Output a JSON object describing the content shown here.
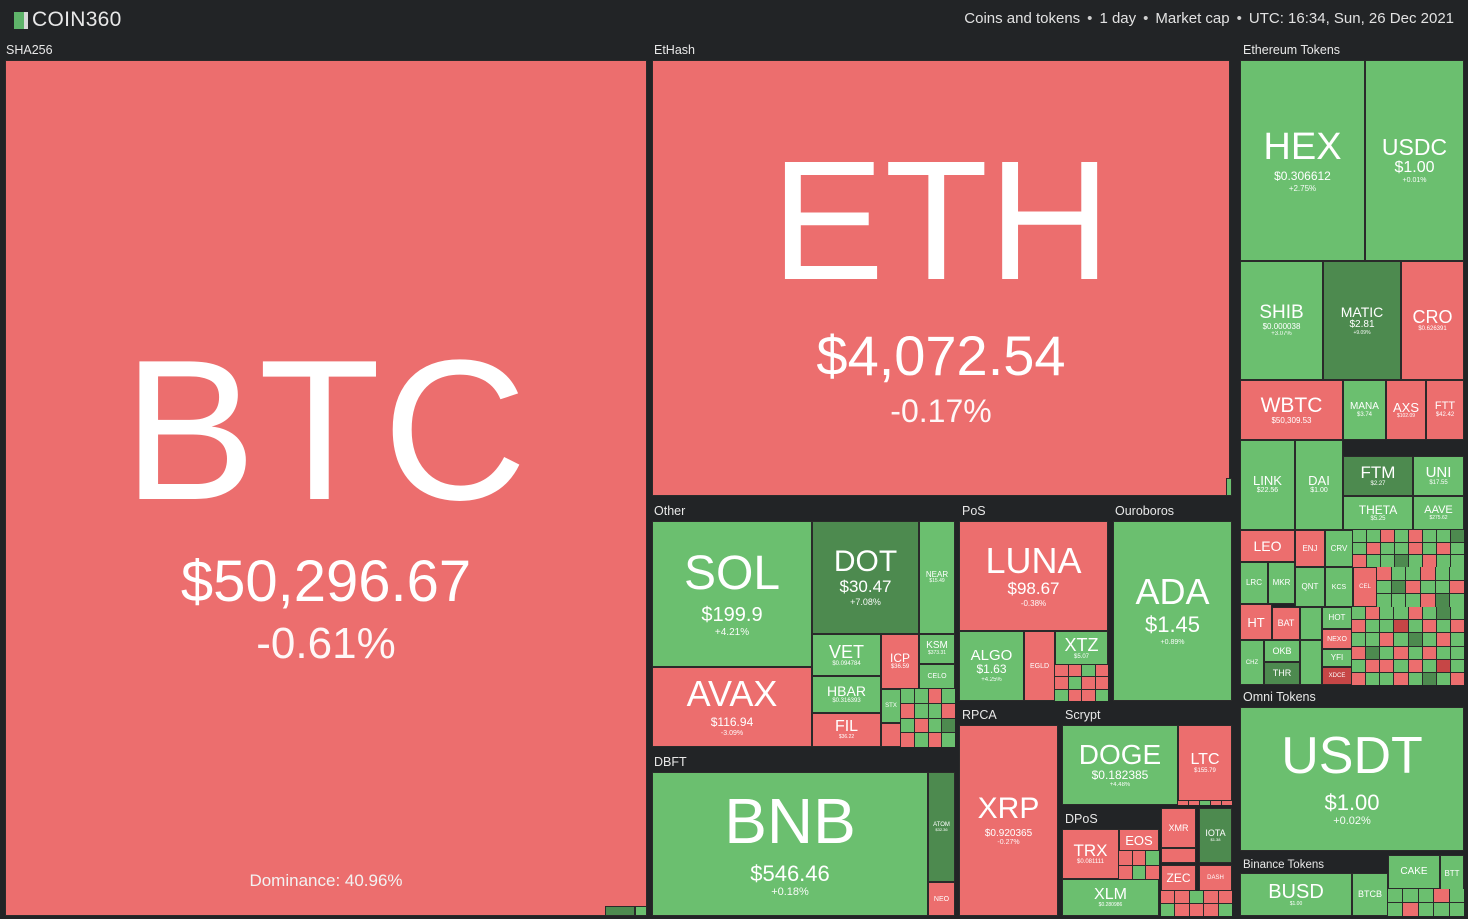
{
  "header": {
    "logo": "COIN360",
    "filter_type": "Coins and tokens",
    "filter_period": "1 day",
    "filter_metric": "Market cap",
    "timestamp": "UTC: 16:34, Sun, 26 Dec 2021",
    "separator": "•"
  },
  "groups": {
    "sha256": "SHA256",
    "ethash": "EtHash",
    "eth_tokens": "Ethereum Tokens",
    "other": "Other",
    "pos": "PoS",
    "ouroboros": "Ouroboros",
    "dbft": "DBFT",
    "rpca": "RPCA",
    "scrypt": "Scrypt",
    "dpos": "DPoS",
    "omni": "Omni Tokens",
    "binance": "Binance Tokens"
  },
  "coins": {
    "btc": {
      "symbol": "BTC",
      "price": "$50,296.67",
      "change": "-0.61%"
    },
    "eth": {
      "symbol": "ETH",
      "price": "$4,072.54",
      "change": "-0.17%"
    },
    "hex": {
      "symbol": "HEX",
      "price": "$0.306612",
      "change": "+2.75%"
    },
    "usdc": {
      "symbol": "USDC",
      "price": "$1.00",
      "change": "+0.01%"
    },
    "shib": {
      "symbol": "SHIB",
      "price": "$0.000038",
      "change": "+3.07%"
    },
    "matic": {
      "symbol": "MATIC",
      "price": "$2.81",
      "change": "+9.09%"
    },
    "cro": {
      "symbol": "CRO",
      "price": "$0.626391",
      "change": "-1.6%"
    },
    "wbtc": {
      "symbol": "WBTC",
      "price": "$50,309.53",
      "change": "-0.6%"
    },
    "mana": {
      "symbol": "MANA",
      "price": "$3.74",
      "change": "+2.1%"
    },
    "axs": {
      "symbol": "AXS",
      "price": "$102.09",
      "change": "-1.2%"
    },
    "ftt": {
      "symbol": "FTT",
      "price": "$42.42",
      "change": "-0.9%"
    },
    "link": {
      "symbol": "LINK",
      "price": "$22.56",
      "change": "+1.4%"
    },
    "dai": {
      "symbol": "DAI",
      "price": "$1.00",
      "change": "+0.0%"
    },
    "ftm": {
      "symbol": "FTM",
      "price": "$2.27",
      "change": "+8.2%"
    },
    "uni": {
      "symbol": "UNI",
      "price": "$17.55",
      "change": "+1.1%"
    },
    "theta": {
      "symbol": "THETA",
      "price": "$5.25",
      "change": "+2.3%"
    },
    "aave": {
      "symbol": "AAVE",
      "price": "$275.62",
      "change": "+1.7%"
    },
    "leo": {
      "symbol": "LEO",
      "price": "",
      "change": ""
    },
    "enj": {
      "symbol": "ENJ",
      "price": "",
      "change": ""
    },
    "crv": {
      "symbol": "CRV",
      "price": "",
      "change": ""
    },
    "lrc": {
      "symbol": "LRC",
      "price": "",
      "change": ""
    },
    "mkr": {
      "symbol": "MKR",
      "price": "",
      "change": ""
    },
    "qnt": {
      "symbol": "QNT",
      "price": "",
      "change": ""
    },
    "kcs": {
      "symbol": "KCS",
      "price": "",
      "change": ""
    },
    "cel": {
      "symbol": "CEL",
      "price": "",
      "change": ""
    },
    "ht": {
      "symbol": "HT",
      "price": "",
      "change": ""
    },
    "bat": {
      "symbol": "BAT",
      "price": "",
      "change": ""
    },
    "hot": {
      "symbol": "HOT",
      "price": "",
      "change": ""
    },
    "nexo": {
      "symbol": "NEXO",
      "price": "",
      "change": ""
    },
    "okb": {
      "symbol": "OKB",
      "price": "",
      "change": ""
    },
    "yfi": {
      "symbol": "YFI",
      "price": "",
      "change": ""
    },
    "chz": {
      "symbol": "CHZ",
      "price": "",
      "change": ""
    },
    "thr": {
      "symbol": "THR",
      "price": "",
      "change": ""
    },
    "xdce": {
      "symbol": "XDCE",
      "price": "",
      "change": ""
    },
    "sol": {
      "symbol": "SOL",
      "price": "$199.9",
      "change": "+4.21%"
    },
    "dot": {
      "symbol": "DOT",
      "price": "$30.47",
      "change": "+7.08%"
    },
    "near": {
      "symbol": "NEAR",
      "price": "$15.49",
      "change": ""
    },
    "vet": {
      "symbol": "VET",
      "price": "$0.094784",
      "change": ""
    },
    "icp": {
      "symbol": "ICP",
      "price": "$36.59",
      "change": ""
    },
    "ksm": {
      "symbol": "KSM",
      "price": "$373.31",
      "change": ""
    },
    "celo": {
      "symbol": "CELO",
      "price": "",
      "change": ""
    },
    "avax": {
      "symbol": "AVAX",
      "price": "$116.94",
      "change": "-3.09%"
    },
    "hbar": {
      "symbol": "HBAR",
      "price": "$0.316393",
      "change": ""
    },
    "fil": {
      "symbol": "FIL",
      "price": "$36.22",
      "change": ""
    },
    "stx": {
      "symbol": "STX",
      "price": "",
      "change": ""
    },
    "luna": {
      "symbol": "LUNA",
      "price": "$98.67",
      "change": "-0.38%"
    },
    "algo": {
      "symbol": "ALGO",
      "price": "$1.63",
      "change": "+4.25%"
    },
    "egld": {
      "symbol": "EGLD",
      "price": "",
      "change": ""
    },
    "xtz": {
      "symbol": "XTZ",
      "price": "$5.07",
      "change": ""
    },
    "ada": {
      "symbol": "ADA",
      "price": "$1.45",
      "change": "+0.89%"
    },
    "bnb": {
      "symbol": "BNB",
      "price": "$546.46",
      "change": "+0.18%"
    },
    "atom": {
      "symbol": "ATOM",
      "price": "$32.36",
      "change": ""
    },
    "neo": {
      "symbol": "NEO",
      "price": "",
      "change": ""
    },
    "xrp": {
      "symbol": "XRP",
      "price": "$0.920365",
      "change": "-0.27%"
    },
    "doge": {
      "symbol": "DOGE",
      "price": "$0.182385",
      "change": "+4.48%"
    },
    "ltc": {
      "symbol": "LTC",
      "price": "$155.79",
      "change": ""
    },
    "trx": {
      "symbol": "TRX",
      "price": "$0.081111",
      "change": ""
    },
    "eos": {
      "symbol": "EOS",
      "price": "",
      "change": ""
    },
    "xmr": {
      "symbol": "XMR",
      "price": "",
      "change": ""
    },
    "iota": {
      "symbol": "IOTA",
      "price": "$1.38",
      "change": ""
    },
    "xlm": {
      "symbol": "XLM",
      "price": "$0.280986",
      "change": ""
    },
    "zec": {
      "symbol": "ZEC",
      "price": "",
      "change": ""
    },
    "dash": {
      "symbol": "DASH",
      "price": "",
      "change": ""
    },
    "usdt": {
      "symbol": "USDT",
      "price": "$1.00",
      "change": "+0.02%"
    },
    "busd": {
      "symbol": "BUSD",
      "price": "$1.00",
      "change": ""
    },
    "btcb": {
      "symbol": "BTCB",
      "price": "",
      "change": ""
    },
    "cake": {
      "symbol": "CAKE",
      "price": "",
      "change": ""
    },
    "btt": {
      "symbol": "BTT",
      "price": "",
      "change": ""
    }
  },
  "footer": {
    "dominance": "Dominance: 40.96%"
  },
  "colors": {
    "down": "#ec6e6e",
    "up": "#6bbf6f",
    "strong_up": "#4d8a4f",
    "strong_down": "#c64646",
    "background": "#222426"
  }
}
